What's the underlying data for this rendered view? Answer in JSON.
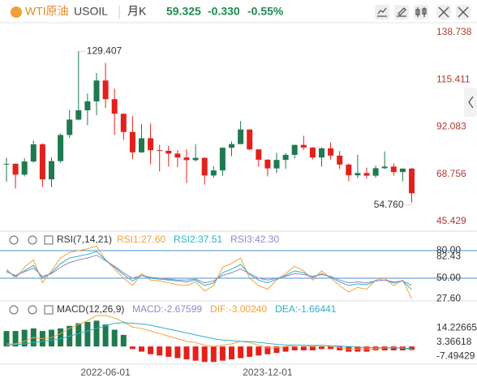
{
  "header": {
    "name": "WTI原油",
    "symbol": "USOIL",
    "period": "月K",
    "price": "59.325",
    "change": "-0.330",
    "change_pct": "-0.55%"
  },
  "chart_data": [
    {
      "type": "candlestick",
      "categories": [
        null,
        null,
        null,
        null,
        null,
        null,
        null,
        null,
        null,
        null,
        null,
        "2022-06-01",
        null,
        null,
        null,
        null,
        null,
        null,
        null,
        null,
        null,
        null,
        null,
        null,
        null,
        null,
        null,
        null,
        null,
        "2023-12-01",
        null,
        null,
        null,
        null,
        null,
        null,
        null,
        null,
        null,
        null,
        null,
        null,
        null,
        null,
        null,
        null
      ],
      "open": [
        73.5,
        73.9,
        68.5,
        75.0,
        83.5,
        66.2,
        75.2,
        88.1,
        95.7,
        100.3,
        104.7,
        115.0,
        105.8,
        98.6,
        89.6,
        79.5,
        86.5,
        80.6,
        80.3,
        78.9,
        77.0,
        75.7,
        76.8,
        68.1,
        70.6,
        81.8,
        83.6,
        90.8,
        81.0,
        75.9,
        71.6,
        75.8,
        78.3,
        83.2,
        81.9,
        77.0,
        81.5,
        77.9,
        73.5,
        68.2,
        69.3,
        68.0,
        71.7,
        72.5,
        69.8,
        71.5
      ],
      "high": [
        76.9,
        74.0,
        76.7,
        85.4,
        84.0,
        77.0,
        88.8,
        100.5,
        129.407,
        108.6,
        118.7,
        123.7,
        111.0,
        98.6,
        97.5,
        93.6,
        93.7,
        83.3,
        82.7,
        80.6,
        81.0,
        83.5,
        77.1,
        72.7,
        82.0,
        84.9,
        95.0,
        90.8,
        81.0,
        76.2,
        79.2,
        79.2,
        83.3,
        87.7,
        82.1,
        82.0,
        84.5,
        80.2,
        74.0,
        78.4,
        72.0,
        73.0,
        80.0,
        74.0,
        71.6,
        71.9
      ],
      "low": [
        65.0,
        61.7,
        67.6,
        74.5,
        62.4,
        62.4,
        74.3,
        86.6,
        95.3,
        92.9,
        97.9,
        101.5,
        88.2,
        85.7,
        76.2,
        79.3,
        73.6,
        70.1,
        72.5,
        72.3,
        64.4,
        74.9,
        63.6,
        66.9,
        67.9,
        77.6,
        83.6,
        80.6,
        72.4,
        67.7,
        69.3,
        71.4,
        76.5,
        80.7,
        76.0,
        72.5,
        76.0,
        71.2,
        65.3,
        66.8,
        66.6,
        67.0,
        71.2,
        68.0,
        65.2,
        54.76
      ],
      "close": [
        73.9,
        68.5,
        75.0,
        83.5,
        66.2,
        75.2,
        88.1,
        95.7,
        100.3,
        104.7,
        115.0,
        105.8,
        98.6,
        89.6,
        79.5,
        86.5,
        80.6,
        80.3,
        78.9,
        77.0,
        75.7,
        76.8,
        68.1,
        70.6,
        81.8,
        83.6,
        90.8,
        81.0,
        75.9,
        71.6,
        75.8,
        78.3,
        83.2,
        81.9,
        77.0,
        81.5,
        77.9,
        73.5,
        68.2,
        69.3,
        68.0,
        71.7,
        72.5,
        69.8,
        71.5,
        59.325
      ],
      "up_color": "#1f7a4f",
      "down_color": "#e3211c",
      "ylim": [
        41.42,
        142.74
      ],
      "yticks": [
        138.738,
        115.411,
        92.083,
        68.756,
        45.429
      ],
      "annotations": [
        {
          "value": 129.407,
          "label": "129.407"
        },
        {
          "value": 54.76,
          "label": "54.760"
        }
      ]
    },
    {
      "type": "line",
      "title": "RSI(7,14,21)",
      "legend_labels": [
        "RSI1:27.60",
        "RSI2:37.51",
        "RSI3:42.30"
      ],
      "series": [
        {
          "name": "RSI1",
          "color": "#f5a03a",
          "values": [
            60,
            50,
            62,
            70,
            45,
            58,
            72,
            78,
            80,
            82,
            85,
            70,
            60,
            50,
            42,
            55,
            48,
            47,
            45,
            43,
            42,
            46,
            36,
            42,
            62,
            66,
            72,
            50,
            42,
            38,
            48,
            55,
            63,
            58,
            48,
            58,
            50,
            42,
            35,
            40,
            38,
            48,
            50,
            42,
            48,
            27.6
          ]
        },
        {
          "name": "RSI2",
          "color": "#2bb3c6",
          "values": [
            58,
            52,
            58,
            64,
            50,
            56,
            66,
            72,
            74,
            76,
            79,
            70,
            62,
            54,
            47,
            53,
            50,
            49,
            48,
            47,
            46,
            48,
            42,
            45,
            56,
            60,
            65,
            54,
            48,
            45,
            49,
            53,
            58,
            56,
            51,
            55,
            51,
            46,
            42,
            44,
            43,
            47,
            48,
            45,
            47,
            37.51
          ]
        },
        {
          "name": "RSI3",
          "color": "#9a84c8",
          "values": [
            57,
            53,
            57,
            61,
            52,
            55,
            62,
            67,
            70,
            72,
            75,
            69,
            63,
            56,
            50,
            53,
            51,
            50,
            49,
            48,
            48,
            49,
            45,
            47,
            53,
            56,
            60,
            55,
            50,
            48,
            50,
            52,
            55,
            54,
            52,
            54,
            52,
            48,
            45,
            46,
            45,
            47,
            48,
            46,
            47,
            42.3
          ]
        }
      ],
      "ylim": [
        26.2,
        96.8
      ],
      "yticks": [
        {
          "value": 80,
          "label": "80.00"
        },
        {
          "value": 50,
          "label": "50.00"
        }
      ],
      "value_tags": [
        {
          "value": 82.43,
          "label": "82.43"
        },
        {
          "value": 27.6,
          "label": "27.60"
        }
      ],
      "level_color": "#4a8fd6"
    },
    {
      "type": "macd",
      "title": "MACD(12,26,9)",
      "legend_labels": [
        "MACD:-2.67599",
        "DIF:-3.00240",
        "DEA:-1.66441"
      ],
      "histogram": {
        "name": "MACD",
        "up_color": "#1f7a4f",
        "down_color": "#e3211c",
        "values": [
          12,
          12,
          13,
          14,
          12,
          13,
          14,
          16,
          18,
          19,
          20,
          17,
          13,
          9,
          -2,
          -4,
          -6,
          -7,
          -8,
          -9,
          -10,
          -11,
          -12,
          -12,
          -11,
          -10,
          -9,
          -8,
          -7,
          -6,
          -5,
          -4,
          -3,
          -3,
          -3,
          -2,
          -2,
          -3,
          -4,
          -4,
          -4,
          -3,
          -3,
          -3,
          -3,
          -2.67599
        ]
      },
      "series": [
        {
          "name": "DIF",
          "color": "#f5a03a",
          "values": [
            2,
            2,
            4,
            7,
            6,
            7,
            10,
            14,
            17,
            20,
            24,
            24,
            22,
            19,
            15,
            14,
            12,
            10,
            8,
            6,
            4,
            3,
            1,
            0,
            1,
            2,
            4,
            3,
            1,
            -1,
            -1,
            0,
            1,
            1,
            0,
            1,
            0,
            -1,
            -2,
            -2,
            -2,
            -2,
            -1,
            -1,
            -1,
            -3.0024
          ]
        },
        {
          "name": "DEA",
          "color": "#2bb3c6",
          "values": [
            1,
            1.5,
            2,
            3,
            4,
            5,
            6,
            8,
            10,
            12,
            14,
            16,
            18,
            18.5,
            18,
            17.5,
            16.5,
            15,
            13.5,
            12,
            10.5,
            9,
            7.5,
            6,
            5,
            4.5,
            4,
            3.8,
            3.2,
            2.4,
            1.7,
            1.2,
            1.1,
            1,
            0.8,
            0.8,
            0.6,
            0.3,
            -0.1,
            -0.5,
            -0.8,
            -1,
            -1,
            -1.1,
            -1.2,
            -1.66441
          ]
        }
      ],
      "ylim": [
        -13.7,
        34.7
      ],
      "yticks": [
        14.22665,
        3.36618,
        -7.49429
      ]
    }
  ]
}
